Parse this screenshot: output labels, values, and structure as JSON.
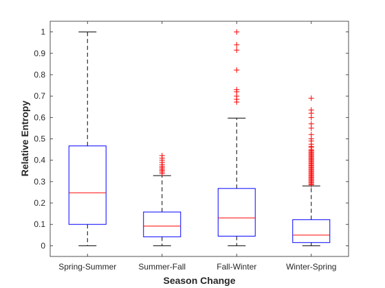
{
  "chart_data": {
    "type": "boxplot",
    "title": "",
    "xlabel": "Season Change",
    "ylabel": "Relative Entropy",
    "ylim": [
      -0.05,
      1.05
    ],
    "yticks": [
      0,
      0.1,
      0.2,
      0.3,
      0.4,
      0.5,
      0.6,
      0.7,
      0.8,
      0.9,
      1
    ],
    "ytick_labels": [
      "0",
      "0.1",
      "0.2",
      "0.3",
      "0.4",
      "0.5",
      "0.6",
      "0.7",
      "0.8",
      "0.9",
      "1"
    ],
    "grid": false,
    "colors": {
      "box": "#0000ff",
      "median": "#ff0000",
      "whisker": "#000000",
      "outlier": "#ff0000"
    },
    "categories": [
      "Spring-Summer",
      "Summer-Fall",
      "Fall-Winter",
      "Winter-Spring"
    ],
    "boxes": [
      {
        "category": "Spring-Summer",
        "whisker_low": 0,
        "q1": 0.1,
        "median": 0.248,
        "q3": 0.467,
        "whisker_high": 1.0,
        "outliers": []
      },
      {
        "category": "Summer-Fall",
        "whisker_low": 0,
        "q1": 0.042,
        "median": 0.092,
        "q3": 0.158,
        "whisker_high": 0.328,
        "outliers": [
          0.338,
          0.345,
          0.352,
          0.358,
          0.365,
          0.372,
          0.38,
          0.39,
          0.4,
          0.41,
          0.422
        ]
      },
      {
        "category": "Fall-Winter",
        "whisker_low": 0,
        "q1": 0.045,
        "median": 0.13,
        "q3": 0.268,
        "whisker_high": 0.597,
        "outliers": [
          0.672,
          0.685,
          0.7,
          0.72,
          0.73,
          0.822,
          0.915,
          0.94,
          1.0
        ]
      },
      {
        "category": "Winter-Spring",
        "whisker_low": 0,
        "q1": 0.015,
        "median": 0.05,
        "q3": 0.122,
        "whisker_high": 0.28,
        "outliers": [
          0.285,
          0.29,
          0.295,
          0.3,
          0.305,
          0.31,
          0.315,
          0.32,
          0.325,
          0.33,
          0.335,
          0.34,
          0.345,
          0.35,
          0.355,
          0.36,
          0.365,
          0.37,
          0.375,
          0.38,
          0.385,
          0.39,
          0.395,
          0.4,
          0.405,
          0.41,
          0.415,
          0.42,
          0.425,
          0.43,
          0.435,
          0.44,
          0.445,
          0.45,
          0.46,
          0.465,
          0.475,
          0.49,
          0.5,
          0.52,
          0.55,
          0.57,
          0.6,
          0.62,
          0.635,
          0.69
        ]
      }
    ]
  }
}
